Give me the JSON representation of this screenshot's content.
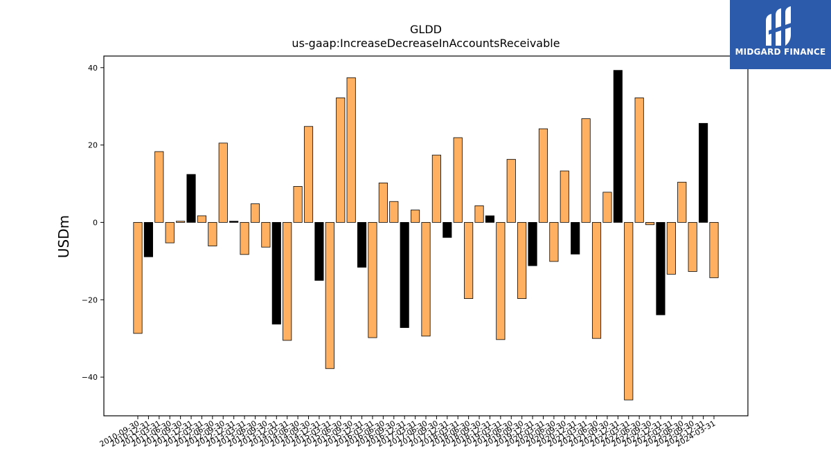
{
  "brand": {
    "name": "MIDGARD FINANCE",
    "background": "#2d5bab",
    "text_color": "#ffffff"
  },
  "chart_data": {
    "type": "bar",
    "title": "GLDD",
    "subtitle": "us-gaap:IncreaseDecreaseInAccountsReceivable",
    "xlabel": "",
    "ylabel": "USDm",
    "ylim": [
      -50,
      43
    ],
    "yticks": [
      40,
      20,
      0,
      -20,
      -40
    ],
    "grid": false,
    "colors": {
      "q": "#ffb060",
      "fy": "#000000",
      "edge": "#000000"
    },
    "categories": [
      "2010-09-30",
      "2010-12-31",
      "2011-03-31",
      "2011-06-30",
      "2011-09-30",
      "2011-12-31",
      "2012-03-31",
      "2012-06-30",
      "2012-09-30",
      "2012-12-31",
      "2013-03-31",
      "2013-06-30",
      "2013-09-30",
      "2013-12-31",
      "2014-03-31",
      "2014-06-30",
      "2014-09-30",
      "2014-12-31",
      "2015-03-31",
      "2015-06-30",
      "2015-09-30",
      "2015-12-31",
      "2016-03-31",
      "2016-06-30",
      "2016-09-30",
      "2016-12-31",
      "2017-03-31",
      "2017-06-30",
      "2017-09-30",
      "2017-12-31",
      "2018-03-31",
      "2018-06-30",
      "2018-09-30",
      "2018-12-31",
      "2019-03-31",
      "2019-06-30",
      "2019-09-30",
      "2019-12-31",
      "2020-03-31",
      "2020-06-30",
      "2020-09-30",
      "2020-12-31",
      "2021-03-31",
      "2021-06-30",
      "2021-09-30",
      "2021-12-31",
      "2022-03-31",
      "2022-06-30",
      "2022-09-30",
      "2022-12-31",
      "2023-03-31",
      "2023-06-30",
      "2023-09-30",
      "2023-12-31",
      "2024-03-31"
    ],
    "values": [
      -28.7,
      -8.9,
      18.3,
      -5.3,
      0.3,
      12.4,
      1.7,
      -6.1,
      20.5,
      0.3,
      -8.3,
      4.8,
      -6.4,
      -26.3,
      -30.5,
      9.3,
      24.8,
      -15.0,
      -37.8,
      32.2,
      37.4,
      -11.6,
      -29.8,
      10.2,
      5.4,
      -27.2,
      3.2,
      -29.4,
      17.4,
      -3.9,
      21.9,
      -19.7,
      4.3,
      1.7,
      -30.3,
      16.3,
      -19.7,
      -11.2,
      24.2,
      -10.1,
      13.3,
      -8.2,
      26.8,
      -30.0,
      7.8,
      39.3,
      -45.9,
      32.2,
      -0.6,
      -23.9,
      -13.4,
      10.4,
      -12.7,
      25.6,
      -14.3
    ],
    "is_fy": [
      false,
      true,
      false,
      false,
      false,
      true,
      false,
      false,
      false,
      true,
      false,
      false,
      false,
      true,
      false,
      false,
      false,
      true,
      false,
      false,
      false,
      true,
      false,
      false,
      false,
      true,
      false,
      false,
      false,
      true,
      false,
      false,
      false,
      true,
      false,
      false,
      false,
      true,
      false,
      false,
      false,
      true,
      false,
      false,
      false,
      true,
      false,
      false,
      false,
      true,
      false,
      false,
      false,
      true,
      false
    ]
  }
}
